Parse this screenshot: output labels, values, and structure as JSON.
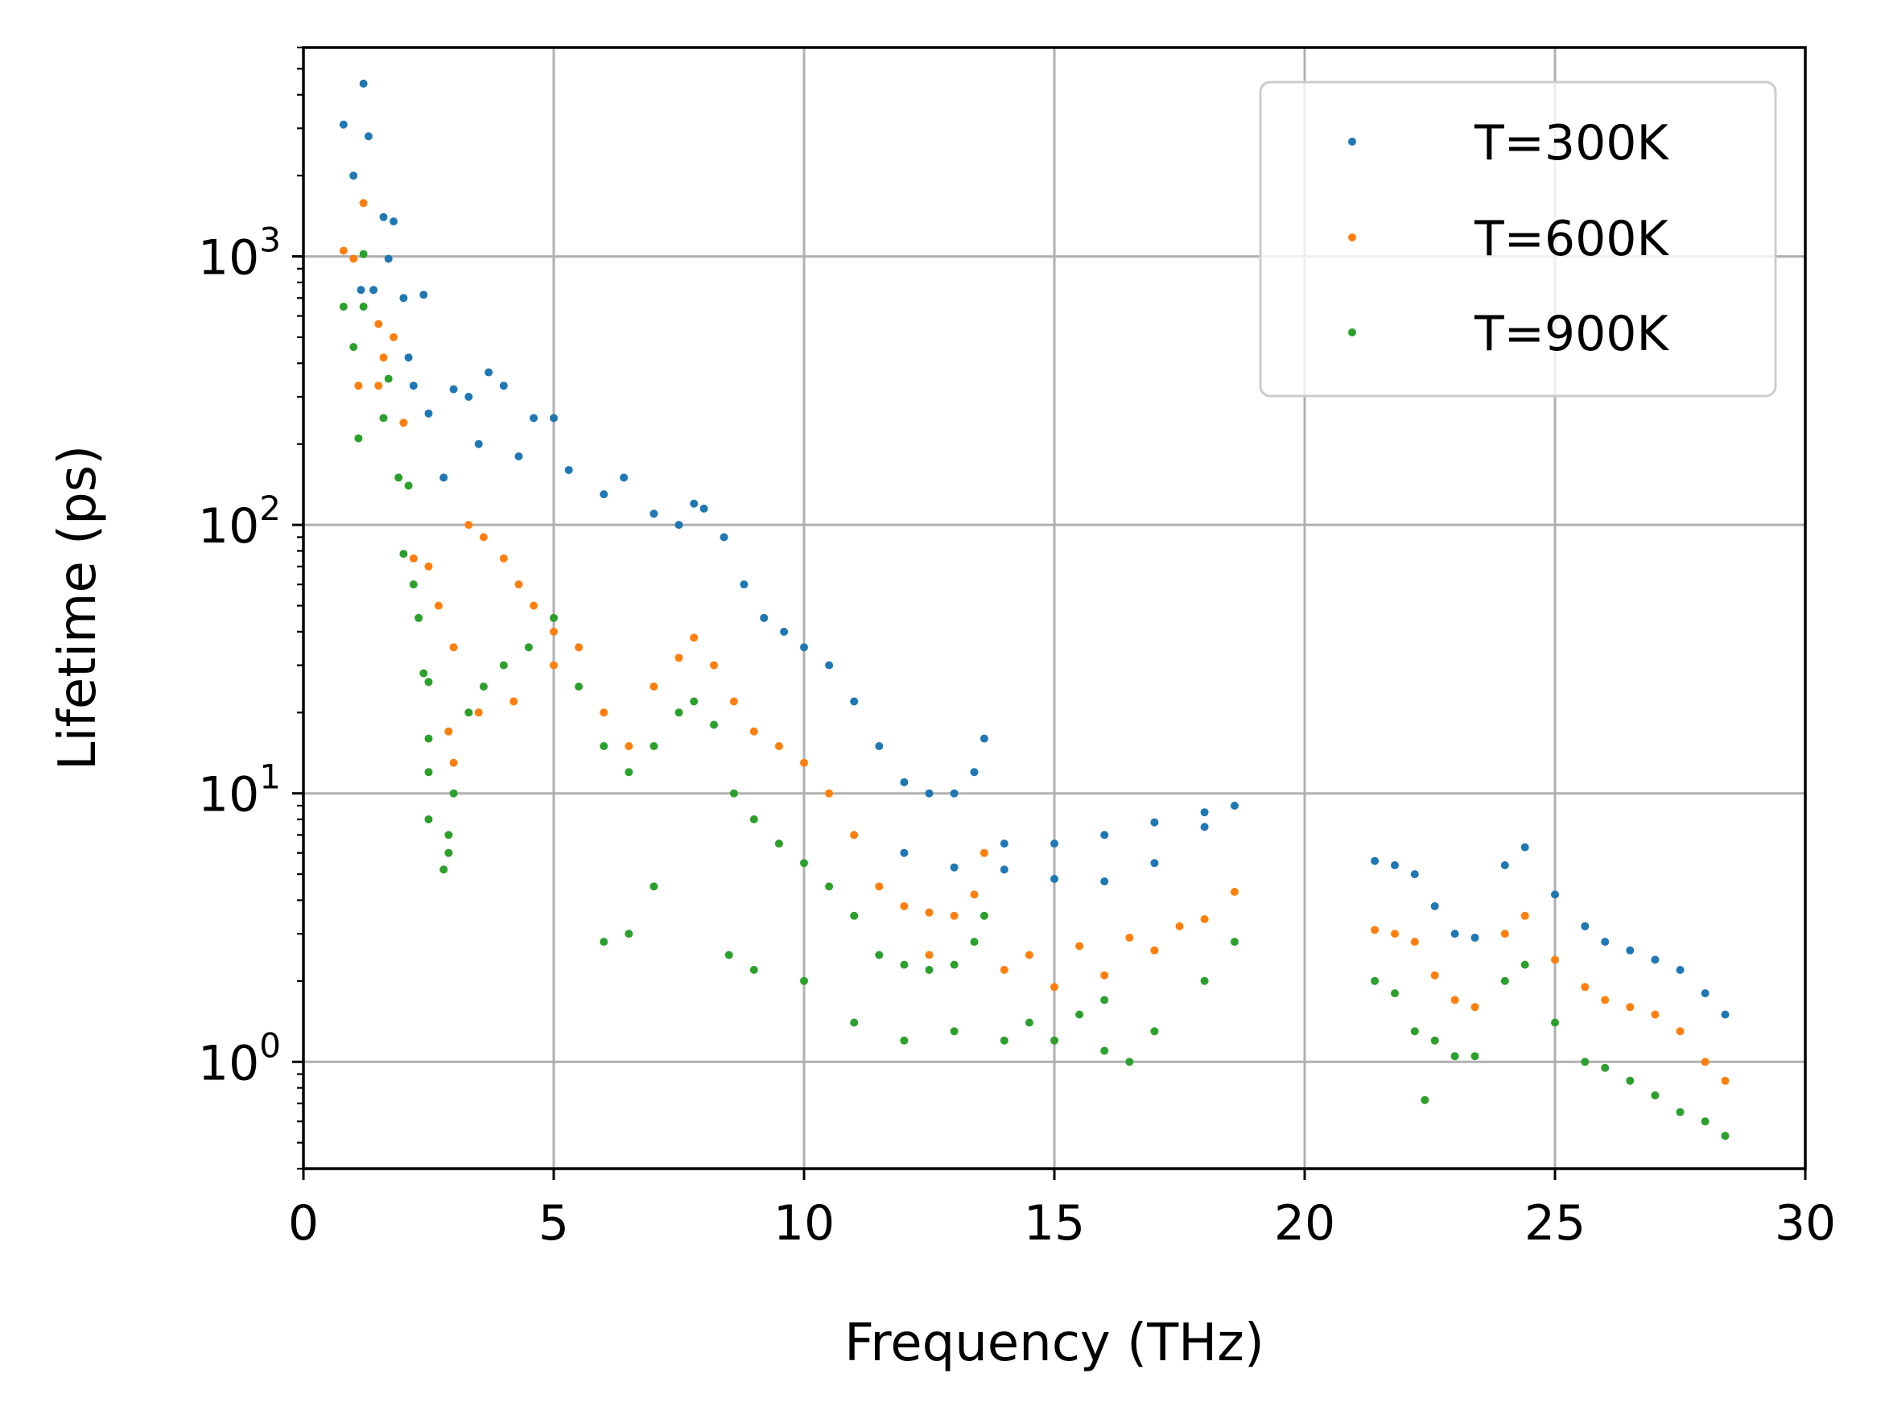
{
  "chart_data": {
    "type": "scatter",
    "title": "",
    "xlabel": "Frequency (THz)",
    "ylabel": "Lifetime (ps)",
    "xlim": [
      0,
      30
    ],
    "ylim": [
      0.4,
      6000
    ],
    "yscale": "log",
    "grid": true,
    "legend_position": "top-right",
    "x_ticks": [
      0,
      5,
      10,
      15,
      20,
      25,
      30
    ],
    "x_tick_labels": [
      "0",
      "5",
      "10",
      "15",
      "20",
      "25",
      "30"
    ],
    "y_ticks": [
      1,
      10,
      100,
      1000
    ],
    "y_tick_labels": [
      {
        "base": "10",
        "exp": "0"
      },
      {
        "base": "10",
        "exp": "1"
      },
      {
        "base": "10",
        "exp": "2"
      },
      {
        "base": "10",
        "exp": "3"
      }
    ],
    "series": [
      {
        "name": "T=300K",
        "color": "#1f77b4",
        "points": [
          [
            0.8,
            3100
          ],
          [
            1.0,
            2000
          ],
          [
            1.2,
            4400
          ],
          [
            1.3,
            2800
          ],
          [
            1.15,
            750
          ],
          [
            1.6,
            1400
          ],
          [
            1.8,
            1350
          ],
          [
            1.7,
            980
          ],
          [
            2.0,
            700
          ],
          [
            2.4,
            720
          ],
          [
            1.4,
            750
          ],
          [
            2.1,
            420
          ],
          [
            2.2,
            330
          ],
          [
            2.5,
            260
          ],
          [
            3.0,
            320
          ],
          [
            3.3,
            300
          ],
          [
            3.7,
            370
          ],
          [
            4.0,
            330
          ],
          [
            4.6,
            250
          ],
          [
            5.0,
            250
          ],
          [
            2.8,
            150
          ],
          [
            3.5,
            200
          ],
          [
            4.3,
            180
          ],
          [
            5.3,
            160
          ],
          [
            6.0,
            130
          ],
          [
            6.4,
            150
          ],
          [
            7.0,
            110
          ],
          [
            7.5,
            100
          ],
          [
            7.8,
            120
          ],
          [
            8.0,
            115
          ],
          [
            8.4,
            90
          ],
          [
            8.8,
            60
          ],
          [
            9.2,
            45
          ],
          [
            9.6,
            40
          ],
          [
            10.0,
            35
          ],
          [
            10.5,
            30
          ],
          [
            11.0,
            22
          ],
          [
            11.5,
            15
          ],
          [
            12.0,
            11
          ],
          [
            12.5,
            10
          ],
          [
            13.0,
            10
          ],
          [
            13.4,
            12
          ],
          [
            13.6,
            16
          ],
          [
            12.0,
            6.0
          ],
          [
            13.0,
            5.3
          ],
          [
            14.0,
            5.2
          ],
          [
            15.0,
            4.8
          ],
          [
            16.0,
            4.7
          ],
          [
            17.0,
            5.5
          ],
          [
            18.0,
            7.5
          ],
          [
            18.6,
            9.0
          ],
          [
            14.0,
            6.5
          ],
          [
            15.0,
            6.5
          ],
          [
            16.0,
            7.0
          ],
          [
            17.0,
            7.8
          ],
          [
            18.0,
            8.5
          ],
          [
            21.4,
            5.6
          ],
          [
            21.8,
            5.4
          ],
          [
            22.2,
            5.0
          ],
          [
            22.6,
            3.8
          ],
          [
            23.0,
            3.0
          ],
          [
            23.4,
            2.9
          ],
          [
            24.0,
            5.4
          ],
          [
            24.4,
            6.3
          ],
          [
            25.0,
            4.2
          ],
          [
            25.6,
            3.2
          ],
          [
            26.0,
            2.8
          ],
          [
            26.5,
            2.6
          ],
          [
            27.0,
            2.4
          ],
          [
            27.5,
            2.2
          ],
          [
            28.0,
            1.8
          ],
          [
            28.4,
            1.5
          ]
        ]
      },
      {
        "name": "T=600K",
        "color": "#ff7f0e",
        "points": [
          [
            0.8,
            1050
          ],
          [
            1.0,
            980
          ],
          [
            1.2,
            1580
          ],
          [
            1.5,
            560
          ],
          [
            1.6,
            420
          ],
          [
            1.8,
            500
          ],
          [
            1.1,
            330
          ],
          [
            1.5,
            330
          ],
          [
            2.0,
            240
          ],
          [
            2.2,
            75
          ],
          [
            2.5,
            70
          ],
          [
            2.7,
            50
          ],
          [
            3.0,
            35
          ],
          [
            3.3,
            100
          ],
          [
            3.6,
            90
          ],
          [
            4.0,
            75
          ],
          [
            4.3,
            60
          ],
          [
            4.6,
            50
          ],
          [
            5.0,
            40
          ],
          [
            5.5,
            35
          ],
          [
            2.9,
            17
          ],
          [
            3.0,
            13
          ],
          [
            3.5,
            20
          ],
          [
            4.2,
            22
          ],
          [
            5.0,
            30
          ],
          [
            6.0,
            20
          ],
          [
            6.5,
            15
          ],
          [
            7.0,
            25
          ],
          [
            7.5,
            32
          ],
          [
            7.8,
            38
          ],
          [
            8.2,
            30
          ],
          [
            8.6,
            22
          ],
          [
            9.0,
            17
          ],
          [
            9.5,
            15
          ],
          [
            10.0,
            13
          ],
          [
            10.5,
            10
          ],
          [
            11.0,
            7.0
          ],
          [
            11.5,
            4.5
          ],
          [
            12.0,
            3.8
          ],
          [
            12.5,
            3.6
          ],
          [
            13.0,
            3.5
          ],
          [
            13.4,
            4.2
          ],
          [
            13.6,
            6.0
          ],
          [
            12.5,
            2.5
          ],
          [
            14.0,
            2.2
          ],
          [
            15.0,
            1.9
          ],
          [
            16.0,
            2.1
          ],
          [
            17.0,
            2.6
          ],
          [
            18.0,
            3.4
          ],
          [
            18.6,
            4.3
          ],
          [
            14.5,
            2.5
          ],
          [
            15.5,
            2.7
          ],
          [
            16.5,
            2.9
          ],
          [
            17.5,
            3.2
          ],
          [
            21.4,
            3.1
          ],
          [
            21.8,
            3.0
          ],
          [
            22.2,
            2.8
          ],
          [
            22.6,
            2.1
          ],
          [
            23.0,
            1.7
          ],
          [
            23.4,
            1.6
          ],
          [
            24.0,
            3.0
          ],
          [
            24.4,
            3.5
          ],
          [
            25.0,
            2.4
          ],
          [
            25.6,
            1.9
          ],
          [
            26.0,
            1.7
          ],
          [
            26.5,
            1.6
          ],
          [
            27.0,
            1.5
          ],
          [
            27.5,
            1.3
          ],
          [
            28.0,
            1.0
          ],
          [
            28.4,
            0.85
          ]
        ]
      },
      {
        "name": "T=900K",
        "color": "#2ca02c",
        "points": [
          [
            0.8,
            650
          ],
          [
            1.0,
            460
          ],
          [
            1.2,
            1020
          ],
          [
            1.2,
            650
          ],
          [
            1.6,
            250
          ],
          [
            1.7,
            350
          ],
          [
            1.1,
            210
          ],
          [
            1.9,
            150
          ],
          [
            2.1,
            140
          ],
          [
            2.0,
            78
          ],
          [
            2.2,
            60
          ],
          [
            2.3,
            45
          ],
          [
            2.4,
            28
          ],
          [
            2.5,
            26
          ],
          [
            2.5,
            16
          ],
          [
            2.5,
            12
          ],
          [
            2.5,
            8.0
          ],
          [
            2.8,
            5.2
          ],
          [
            2.9,
            6.0
          ],
          [
            2.9,
            7.0
          ],
          [
            3.0,
            10
          ],
          [
            3.3,
            20
          ],
          [
            3.6,
            25
          ],
          [
            4.0,
            30
          ],
          [
            4.5,
            35
          ],
          [
            5.0,
            45
          ],
          [
            5.5,
            25
          ],
          [
            6.0,
            15
          ],
          [
            6.5,
            12
          ],
          [
            7.0,
            15
          ],
          [
            7.5,
            20
          ],
          [
            7.8,
            22
          ],
          [
            8.2,
            18
          ],
          [
            8.6,
            10
          ],
          [
            9.0,
            8.0
          ],
          [
            9.5,
            6.5
          ],
          [
            10.0,
            5.5
          ],
          [
            10.5,
            4.5
          ],
          [
            11.0,
            3.5
          ],
          [
            11.5,
            2.5
          ],
          [
            12.0,
            2.3
          ],
          [
            12.5,
            2.2
          ],
          [
            13.0,
            2.3
          ],
          [
            13.4,
            2.8
          ],
          [
            13.6,
            3.5
          ],
          [
            6.0,
            2.8
          ],
          [
            6.5,
            3.0
          ],
          [
            7.0,
            4.5
          ],
          [
            8.5,
            2.5
          ],
          [
            9.0,
            2.2
          ],
          [
            10.0,
            2.0
          ],
          [
            11.0,
            1.4
          ],
          [
            12.0,
            1.2
          ],
          [
            13.0,
            1.3
          ],
          [
            14.0,
            1.2
          ],
          [
            15.0,
            1.2
          ],
          [
            16.0,
            1.1
          ],
          [
            16.5,
            1.0
          ],
          [
            17.0,
            1.3
          ],
          [
            18.0,
            2.0
          ],
          [
            18.6,
            2.8
          ],
          [
            14.5,
            1.4
          ],
          [
            15.5,
            1.5
          ],
          [
            16.0,
            1.7
          ],
          [
            21.4,
            2.0
          ],
          [
            21.8,
            1.8
          ],
          [
            22.2,
            1.3
          ],
          [
            22.4,
            0.72
          ],
          [
            22.6,
            1.2
          ],
          [
            23.0,
            1.05
          ],
          [
            23.4,
            1.05
          ],
          [
            24.0,
            2.0
          ],
          [
            24.4,
            2.3
          ],
          [
            25.0,
            1.4
          ],
          [
            25.6,
            1.0
          ],
          [
            26.0,
            0.95
          ],
          [
            26.5,
            0.85
          ],
          [
            27.0,
            0.75
          ],
          [
            27.5,
            0.65
          ],
          [
            28.0,
            0.6
          ],
          [
            28.4,
            0.53
          ]
        ]
      }
    ]
  }
}
